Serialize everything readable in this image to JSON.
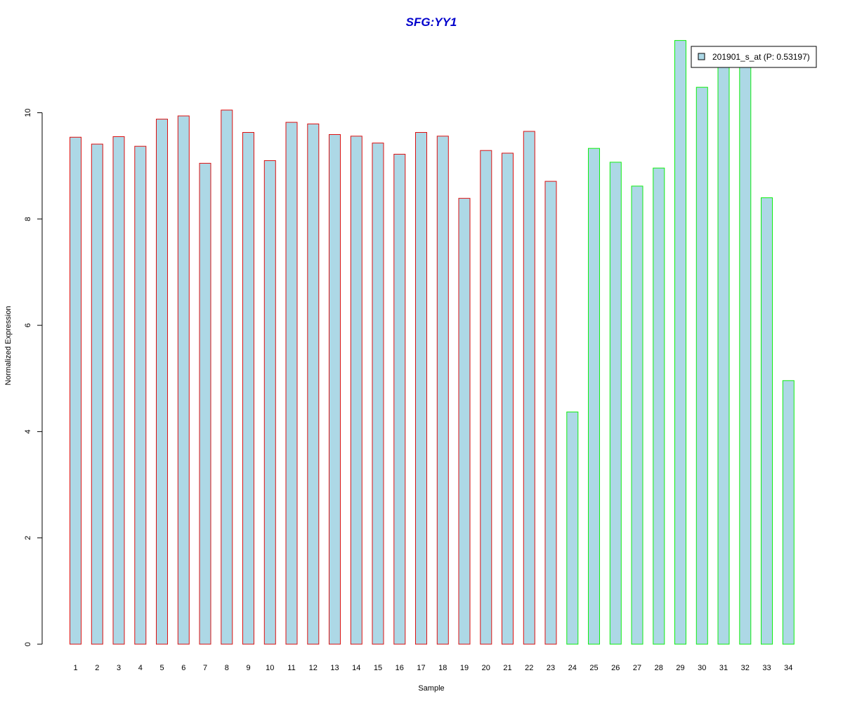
{
  "chart_data": {
    "type": "bar",
    "title": "SFG:YY1",
    "xlabel": "Sample",
    "ylabel": "Normalized Expression",
    "ylim": [
      0,
      11.4
    ],
    "yticks": [
      0,
      2,
      4,
      6,
      8,
      10
    ],
    "categories": [
      "1",
      "2",
      "3",
      "4",
      "5",
      "6",
      "7",
      "8",
      "9",
      "10",
      "11",
      "12",
      "13",
      "14",
      "15",
      "16",
      "17",
      "18",
      "19",
      "20",
      "21",
      "22",
      "23",
      "24",
      "25",
      "26",
      "27",
      "28",
      "29",
      "30",
      "31",
      "32",
      "33",
      "34"
    ],
    "values": [
      9.54,
      9.41,
      9.55,
      9.37,
      9.88,
      9.94,
      9.05,
      10.05,
      9.63,
      9.1,
      9.82,
      9.79,
      9.59,
      9.56,
      9.43,
      9.22,
      9.63,
      9.56,
      8.39,
      9.29,
      9.24,
      9.65,
      8.71,
      4.37,
      9.33,
      9.07,
      8.62,
      8.96,
      11.36,
      10.48,
      10.88,
      10.88,
      8.4,
      4.96
    ],
    "group": [
      "a",
      "a",
      "a",
      "a",
      "a",
      "a",
      "a",
      "a",
      "a",
      "a",
      "a",
      "a",
      "a",
      "a",
      "a",
      "a",
      "a",
      "a",
      "a",
      "a",
      "a",
      "a",
      "a",
      "b",
      "b",
      "b",
      "b",
      "b",
      "b",
      "b",
      "b",
      "b",
      "b",
      "b"
    ],
    "colors": {
      "fill": "#add8e6",
      "group_a_border": "#dd1111",
      "group_b_border": "#11ee11",
      "title": "#0000cc",
      "axis": "#000000"
    },
    "legend": {
      "label": "201901_s_at (P: 0.53197)",
      "position": "top-right"
    },
    "grid": false
  }
}
